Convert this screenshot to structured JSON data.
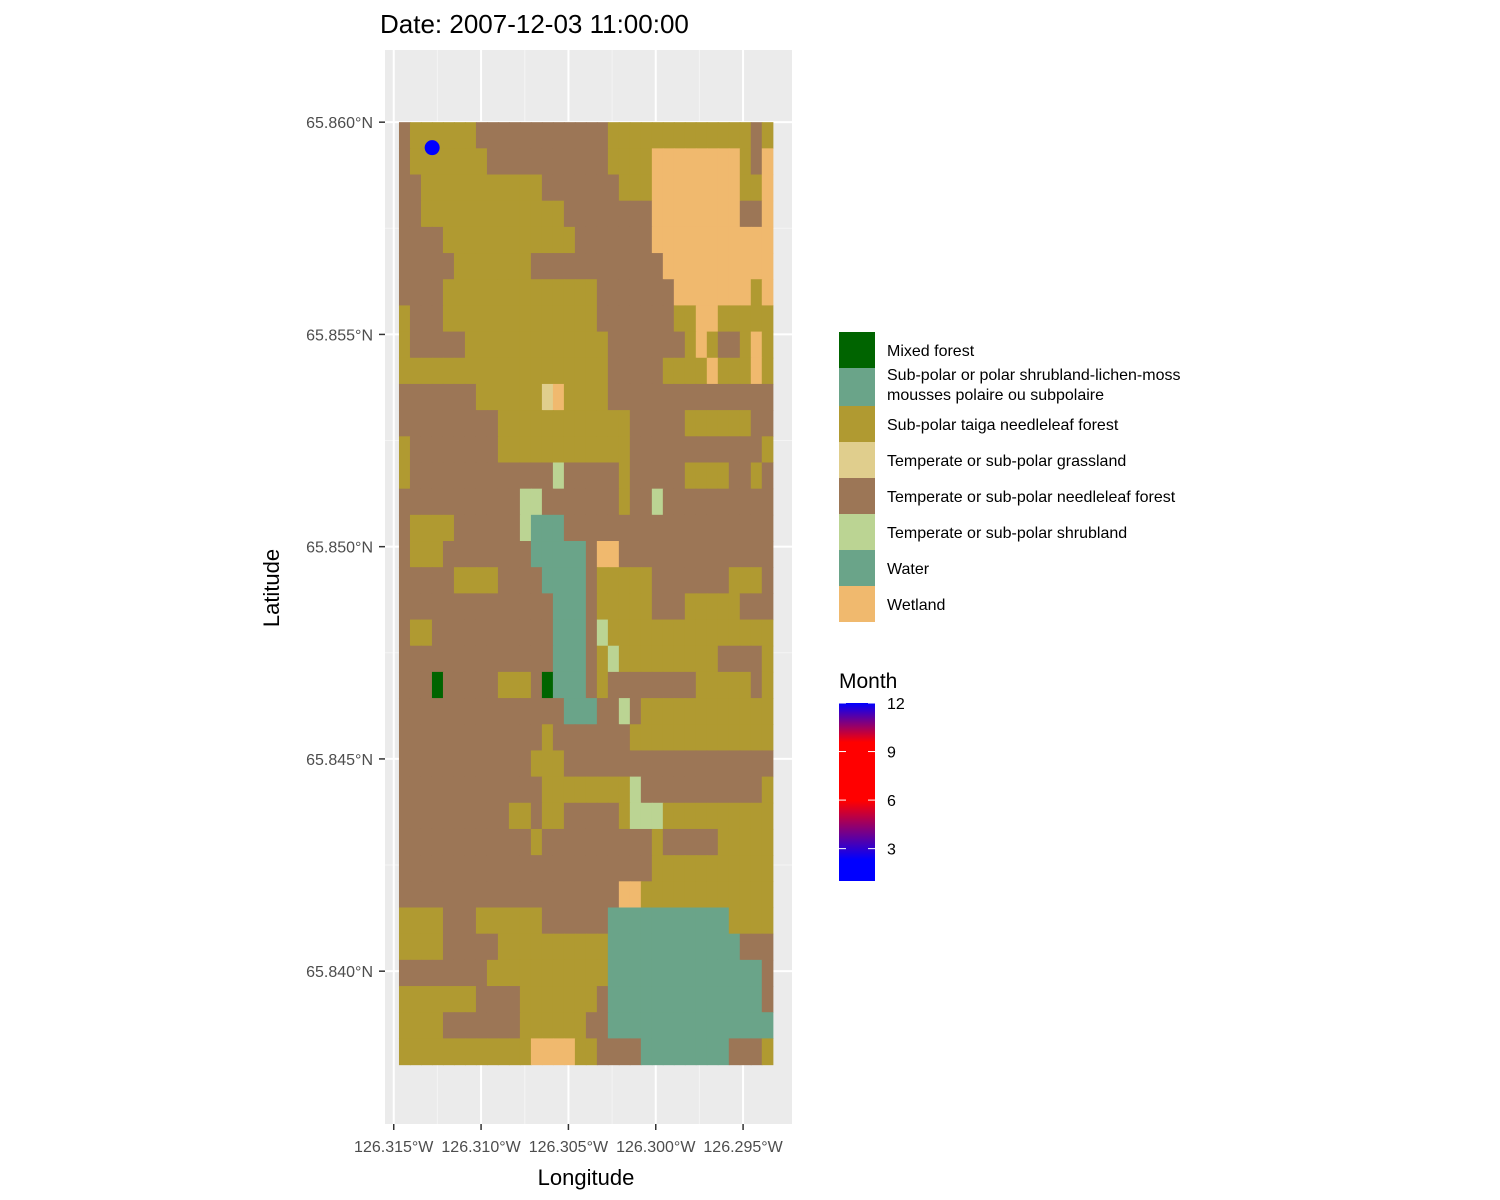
{
  "chart_data": {
    "type": "heatmap",
    "title": "Date: 2007-12-03 11:00:00",
    "xlabel": "Longitude",
    "ylabel": "Latitude",
    "xlim": [
      -126.3155,
      -126.2922
    ],
    "ylim": [
      65.8364,
      65.8617
    ],
    "x_ticks": [
      {
        "value": -126.315,
        "label": "126.315°W"
      },
      {
        "value": -126.31,
        "label": "126.310°W"
      },
      {
        "value": -126.305,
        "label": "126.305°W"
      },
      {
        "value": -126.3,
        "label": "126.300°W"
      },
      {
        "value": -126.295,
        "label": "126.295°W"
      }
    ],
    "y_ticks": [
      {
        "value": 65.84,
        "label": "65.840°N"
      },
      {
        "value": 65.845,
        "label": "65.845°N"
      },
      {
        "value": 65.85,
        "label": "65.850°N"
      },
      {
        "value": 65.855,
        "label": "65.855°N"
      },
      {
        "value": 65.86,
        "label": "65.860°N"
      }
    ],
    "grid": true,
    "background": "#ebebeb",
    "raster": {
      "x_min": -126.3147,
      "x_max": -126.2933,
      "y_min": 65.8378,
      "y_max": 65.86,
      "ncol": 34,
      "nrow": 36,
      "legend_codes": {
        "M": "Mixed forest",
        "S": "Sub-polar taiga needleleaf forest",
        "T": "Temperate or sub-polar needleleaf forest",
        "W": "Water",
        "E": "Wetland",
        "G": "Temperate or sub-polar grassland",
        "H": "Temperate or sub-polar shrubland"
      },
      "rows": [
        "TSSSSSSTTTTTTTTTTTTSSSSSSSSSSSSSTS",
        "TSSSSSSSTTTTTTTTTTTSSSSEEEEEEEESTE",
        "TTSSSSSSSSSSSTTTTTTTSSSEEEEEEEESSE",
        "TTSSSSSSSSSSSSSTTTTTTTTEEEEEEEETTE",
        "TTTTSSSSSSSSSSSSTTTTTTTEEEEEEEEEEE",
        "TTTTTSSSSSSSTTTTTTTTTTTTEEEEEEEEEE",
        "TTTTSSSSSSSSSSSSSSTTTTTTTEEEEEEESE",
        "STTTSSSSSSSSSSSSSSTTTTTTTSSEESSSSS",
        "STTTTTSSSSSSSSSSSSSTTTTTTTSESTTSES",
        "SSSSSSSSSSSSSSSSSSSTTTTTSSSSESSSES",
        "TTTTTTTSSSSSSGESSSSTTTTTTTTTTTTTTT",
        "TTTTTTTTTSSSSSSSSSSSSTTTTTSSSSSSTT",
        "STTTTTTTTSSSSSSSSSSSSTTTTTTTTTTTTS",
        "STTTTTTTTTTTTTHTTTTTSTTTTTSSSSTTST",
        "TTTTTTTTTTTHHTTTTTTTSTTHTTTTTTTTTT",
        "TSSSSTTTTTTHWWWTTTTTTTTTTTTTTTTTTT",
        "TSSSTTTTTTTTWWWWWTEETTTTTTTTTTTTTT",
        "TTTTTSSSSTTTTWWWWTSSSSSTTTTTTTSSST",
        "TTTTTTTTTTTTTTWWWTSSSSSTTTSSSSSTTT",
        "TSSTTTTTTTTTTTWWWTHSSSSSSSSSSSSSSS",
        "TTTTTTTTTTTTTTWWWTSHSSSSSSSSSTTTTS",
        "TTTMTTTTTSSSTMWWWTSTTTTTTTTSSSSSTS",
        "TTTTTTTTTTTTTTTWWWTTHTSSSSSSSSSSSS",
        "TTTTTTTTTTTTTSTTTTTTTSSSSSSSSSSSSS",
        "TTTTTTTTTTTTSSSTTTTTTTTTTTTTTTTTTT",
        "TTTTTTTTTTTTTSSSSSSSSHTTTTTTTTTTTS",
        "TTTTTTTTTTSSTSSTTTTTSHHHSSSSSSSSSS",
        "TTTTTTTTTTTTSTTTTTTTTTTSTTTTTSSSSS",
        "TTTTTTTTTTTTTTTTTTTTTTTSSSSSSSSSSS",
        "TTTTTTTTTTTTTTTTTTTTEESSSSSSSSSSSS",
        "SSSSTTTSSSSSSTTTTTTWWWWWWWWWWWSSSS",
        "SSSSTTTTTSSSSSSSSSSWWWWWWWWWWWWTTT",
        "TTTTTTTTSSSSSSSSSSSWWWWWWWWWWWWWWT",
        "SSSSSSSTTTTSSSSSSSTWWWWWWWWWWWWWWT",
        "SSSSTTTTTTTSSSSSSTTWWWWWWWWWWWWWWW",
        "SSSSSSSSSSSSEEEESSTTTTWWWWWWWWTTTS"
      ]
    },
    "points": [
      {
        "lon": -126.3128,
        "lat": 65.8594,
        "color": "#0000ff"
      }
    ],
    "legend": {
      "placement": "right",
      "title": "",
      "entries": [
        {
          "label": "Mixed forest",
          "color": "#006400"
        },
        {
          "label": "Sub-polar or polar shrubland-lichen-moss\nmousses polaire ou subpolaire",
          "color": "#6aa489"
        },
        {
          "label": "Sub-polar taiga needleleaf forest",
          "color": "#b09a31"
        },
        {
          "label": "Temperate or sub-polar grassland",
          "color": "#e0ce8d"
        },
        {
          "label": "Temperate or sub-polar needleleaf forest",
          "color": "#9c7656"
        },
        {
          "label": "Temperate or sub-polar shrubland",
          "color": "#bbd493"
        },
        {
          "label": "Water",
          "color": "#6aa489"
        },
        {
          "label": "Wetland",
          "color": "#f0b96e"
        }
      ]
    },
    "colorbar": {
      "title": "Month",
      "range": [
        1,
        12
      ],
      "ticks": [
        3,
        6,
        9,
        12
      ],
      "gradient": [
        "#0000ff",
        "#0000ff",
        "#ff0000",
        "#ff0000",
        "#0000ff"
      ]
    }
  }
}
